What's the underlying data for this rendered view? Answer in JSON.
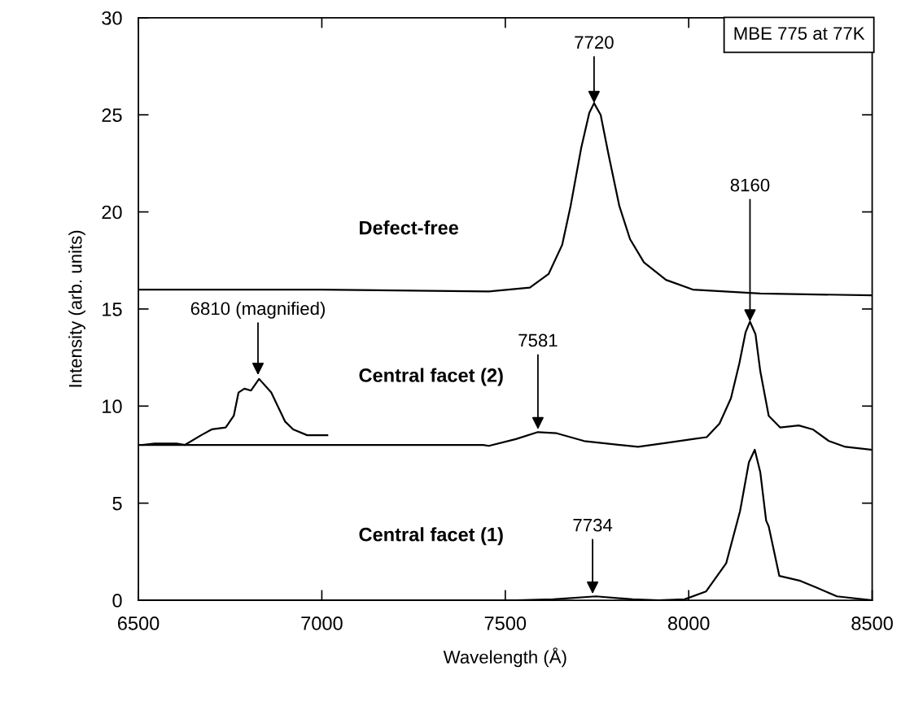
{
  "chart_data": {
    "type": "line",
    "xlabel": "Wavelength (Å)",
    "ylabel": "Intensity (arb. units)",
    "xlim": [
      6500,
      8500
    ],
    "xticks": [
      6500,
      7000,
      7500,
      8000,
      8500
    ],
    "ylim": [
      0,
      30
    ],
    "yticks": [
      0,
      5,
      10,
      15,
      20,
      25,
      30
    ],
    "grid": false,
    "legend": false,
    "marker": "none",
    "line_style": "solid",
    "series": [
      {
        "name": "Defect-free",
        "color": "#000000",
        "x": [
          6500,
          7000,
          7455,
          7567,
          7618,
          7655,
          7678,
          7707,
          7729,
          7742,
          7760,
          7782,
          7811,
          7840,
          7878,
          7938,
          8011,
          8195,
          8500
        ],
        "values": [
          16.0,
          16.0,
          15.9,
          16.1,
          16.8,
          18.3,
          20.3,
          23.3,
          25.1,
          25.6,
          25.0,
          22.9,
          20.3,
          18.6,
          17.4,
          16.5,
          16.0,
          15.8,
          15.7
        ]
      },
      {
        "name": "Central facet (2)",
        "color": "#000000",
        "x": [
          6500,
          7000,
          7440,
          7455,
          7529,
          7589,
          7640,
          7715,
          7862,
          7938,
          8011,
          8049,
          8084,
          8115,
          8138,
          8155,
          8167,
          8182,
          8195,
          8218,
          8249,
          8300,
          8338,
          8382,
          8427,
          8500
        ],
        "values": [
          8.0,
          8.0,
          8.0,
          7.95,
          8.3,
          8.66,
          8.6,
          8.2,
          7.9,
          8.1,
          8.3,
          8.4,
          9.1,
          10.4,
          12.2,
          13.8,
          14.35,
          13.7,
          11.8,
          9.5,
          8.9,
          9.0,
          8.8,
          8.2,
          7.9,
          7.75
        ]
      },
      {
        "color": "#000000",
        "x": [
          6511,
          6544,
          6604,
          6627,
          6671,
          6700,
          6738,
          6760,
          6773,
          6789,
          6807,
          6829,
          6862,
          6900,
          6922,
          6960,
          6989,
          7015
        ],
        "values": [
          8.0,
          8.07,
          8.07,
          8.0,
          8.5,
          8.8,
          8.9,
          9.5,
          10.7,
          10.9,
          10.8,
          11.4,
          10.7,
          9.2,
          8.8,
          8.5,
          8.5,
          8.5
        ]
      },
      {
        "name": "Central facet (1)",
        "color": "#000000",
        "x": [
          6500,
          7000,
          7531,
          7631,
          7747,
          7847,
          7918,
          7989,
          8047,
          8102,
          8140,
          8164,
          8180,
          8195,
          8211,
          8218,
          8247,
          8304,
          8346,
          8404,
          8500
        ],
        "values": [
          0,
          0,
          0,
          0.05,
          0.2,
          0.05,
          0,
          0.05,
          0.45,
          1.9,
          4.6,
          7.1,
          7.75,
          6.6,
          4.1,
          3.8,
          1.25,
          1.0,
          0.67,
          0.2,
          0
        ]
      }
    ],
    "annotations": [
      {
        "text": "7720",
        "x": 7742,
        "y": 25.6
      },
      {
        "text": "8160",
        "x": 8167,
        "y": 14.35
      },
      {
        "text": "7581",
        "x": 7589,
        "y": 8.8
      },
      {
        "text": "6810 (magnified)",
        "x": 6826,
        "y": 11.6
      },
      {
        "text": "7734",
        "x": 7738,
        "y": 0.33
      },
      "MBE 775 at 77K"
    ]
  }
}
